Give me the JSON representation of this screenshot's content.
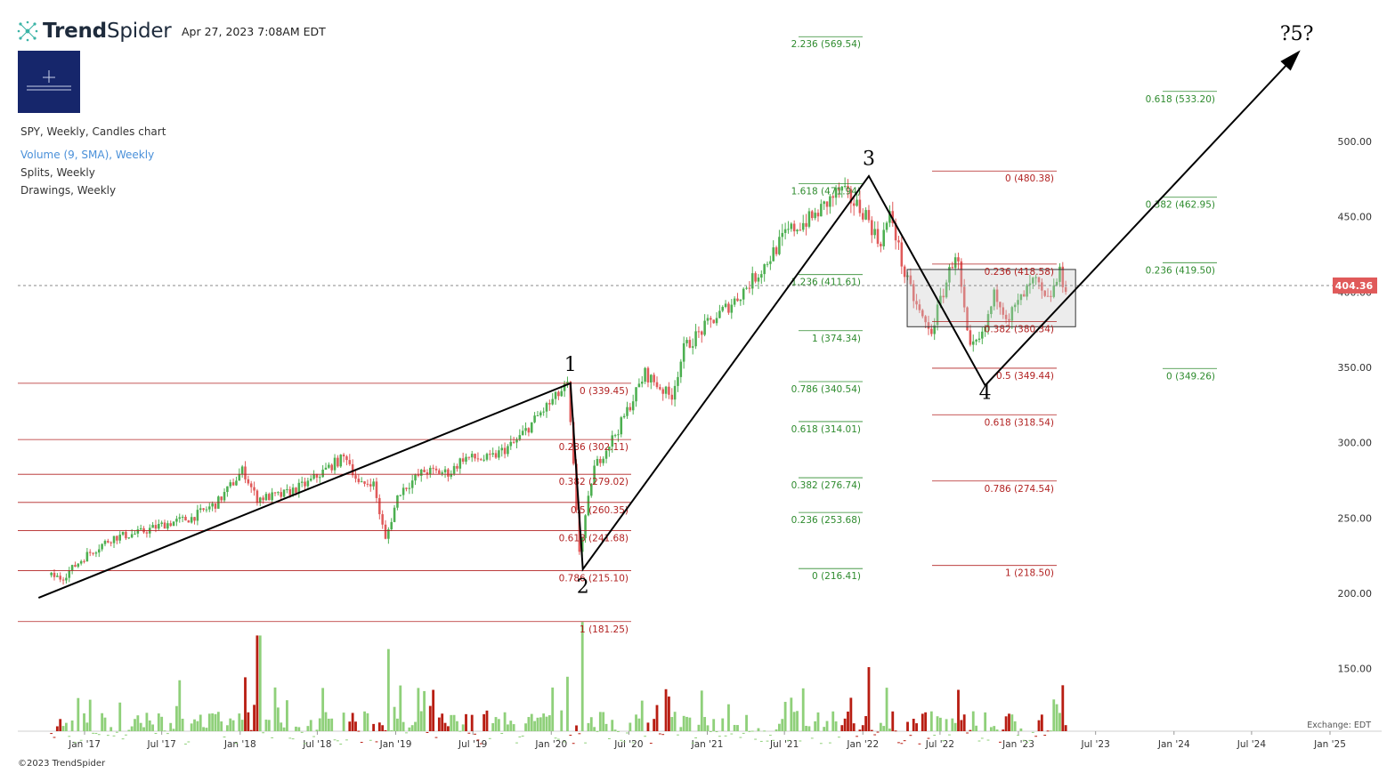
{
  "header": {
    "brand_trend": "Trend",
    "brand_spider": "Spider",
    "datestamp": "Apr 27, 2023 7:08AM EDT"
  },
  "legend": {
    "main": "SPY, Weekly, Candles chart",
    "volume": "Volume (9, SMA), Weekly",
    "splits": "Splits, Weekly",
    "drawings": "Drawings, Weekly"
  },
  "footer": {
    "copyright": "©2023 TrendSpider",
    "exchange": "Exchange: EDT"
  },
  "colors": {
    "up": "#4caf50",
    "down": "#e05a5a",
    "vol_up": "#8fd07a",
    "vol_down": "#b81d12",
    "fib_red": "#b22222",
    "fib_green": "#2e8b2e",
    "price_badge": "#e05a5a",
    "brand": "#16266b"
  },
  "chart_data": {
    "type": "candlestick",
    "title": "SPY, Weekly, Candles chart",
    "y_ticks": [
      150,
      200,
      250,
      300,
      350,
      400,
      450,
      500
    ],
    "ylim": [
      95,
      580
    ],
    "x_ticks": [
      "Jan '17",
      "Jul '17",
      "Jan '18",
      "Jul '18",
      "Jan '19",
      "Jul '19",
      "Jan '20",
      "Jul '20",
      "Jan '21",
      "Jul '21",
      "Jan '22",
      "Jul '22",
      "Jan '23",
      "Jul '23",
      "Jan '24",
      "Jul '24",
      "Jan '25"
    ],
    "last_price": "404.36",
    "price_path": [
      [
        "2016-10",
        212
      ],
      [
        "2016-11",
        210
      ],
      [
        "2017-01",
        226
      ],
      [
        "2017-03",
        237
      ],
      [
        "2017-05",
        240
      ],
      [
        "2017-07",
        246
      ],
      [
        "2017-09",
        250
      ],
      [
        "2017-11",
        260
      ],
      [
        "2018-01",
        282
      ],
      [
        "2018-02",
        263
      ],
      [
        "2018-04",
        265
      ],
      [
        "2018-06",
        273
      ],
      [
        "2018-08",
        286
      ],
      [
        "2018-09",
        291
      ],
      [
        "2018-10",
        271
      ],
      [
        "2018-11",
        275
      ],
      [
        "2018-12",
        235
      ],
      [
        "2019-01",
        267
      ],
      [
        "2019-03",
        281
      ],
      [
        "2019-05",
        280
      ],
      [
        "2019-06",
        290
      ],
      [
        "2019-08",
        289
      ],
      [
        "2019-10",
        300
      ],
      [
        "2019-12",
        320
      ],
      [
        "2020-02",
        338
      ],
      [
        "2020-03",
        225
      ],
      [
        "2020-04",
        282
      ],
      [
        "2020-06",
        310
      ],
      [
        "2020-08",
        346
      ],
      [
        "2020-10",
        330
      ],
      [
        "2020-11",
        363
      ],
      [
        "2021-01",
        380
      ],
      [
        "2021-03",
        395
      ],
      [
        "2021-05",
        415
      ],
      [
        "2021-07",
        440
      ],
      [
        "2021-09",
        450
      ],
      [
        "2021-11",
        468
      ],
      [
        "2022-01",
        452
      ],
      [
        "2022-02",
        432
      ],
      [
        "2022-03",
        452
      ],
      [
        "2022-04",
        412
      ],
      [
        "2022-05",
        390
      ],
      [
        "2022-06",
        372
      ],
      [
        "2022-08",
        428
      ],
      [
        "2022-09",
        360
      ],
      [
        "2022-10",
        370
      ],
      [
        "2022-11",
        400
      ],
      [
        "2022-12",
        383
      ],
      [
        "2023-02",
        408
      ],
      [
        "2023-03",
        392
      ],
      [
        "2023-04",
        412
      ],
      [
        "2023-04-27",
        404
      ]
    ],
    "volume_spikes": [
      [
        "2018-02",
        172
      ],
      [
        "2018-12",
        163
      ],
      [
        "2020-03",
        181
      ],
      [
        "2022-01",
        151
      ]
    ],
    "wave_labels": [
      {
        "label": "1",
        "date": "2020-02",
        "price": 339.45
      },
      {
        "label": "2",
        "date": "2020-03",
        "price": 218
      },
      {
        "label": "3",
        "date": "2022-01",
        "price": 476
      },
      {
        "label": "4",
        "date": "2022-10",
        "price": 348
      },
      {
        "label": "?5?",
        "date": "2024-10",
        "price": 572
      }
    ],
    "fib_sets": [
      {
        "color": "red",
        "levels": [
          {
            "label": "0 (339.45)",
            "price": 339.45
          },
          {
            "label": "0.236 (302.11)",
            "price": 302.11
          },
          {
            "label": "0.382 (279.02)",
            "price": 279.02
          },
          {
            "label": "0.5 (260.35)",
            "price": 260.35
          },
          {
            "label": "0.618 (241.68)",
            "price": 241.68
          },
          {
            "label": "0.786 (215.10)",
            "price": 215.1
          },
          {
            "label": "1 (181.25)",
            "price": 181.25
          }
        ]
      },
      {
        "color": "green",
        "levels": [
          {
            "label": "2.236 (569.54)",
            "price": 569.54
          },
          {
            "label": "1.618 (471.94)",
            "price": 471.94
          },
          {
            "label": "1.236 (411.61)",
            "price": 411.61
          },
          {
            "label": "1 (374.34)",
            "price": 374.34
          },
          {
            "label": "0.786 (340.54)",
            "price": 340.54
          },
          {
            "label": "0.618 (314.01)",
            "price": 314.01
          },
          {
            "label": "0.382 (276.74)",
            "price": 276.74
          },
          {
            "label": "0.236 (253.68)",
            "price": 253.68
          },
          {
            "label": "0 (216.41)",
            "price": 216.41
          }
        ]
      },
      {
        "color": "red",
        "levels": [
          {
            "label": "0 (480.38)",
            "price": 480.38
          },
          {
            "label": "0.236 (418.58)",
            "price": 418.58
          },
          {
            "label": "0.382 (380.34)",
            "price": 380.34
          },
          {
            "label": "0.5 (349.44)",
            "price": 349.44
          },
          {
            "label": "0.618 (318.54)",
            "price": 318.54
          },
          {
            "label": "0.786 (274.54)",
            "price": 274.54
          },
          {
            "label": "1 (218.50)",
            "price": 218.5
          }
        ]
      },
      {
        "color": "green",
        "levels": [
          {
            "label": "0.618 (533.20)",
            "price": 533.2
          },
          {
            "label": "0.382 (462.95)",
            "price": 462.95
          },
          {
            "label": "0.236 (419.50)",
            "price": 419.5
          },
          {
            "label": "0 (349.26)",
            "price": 349.26
          }
        ]
      }
    ],
    "wave_path": [
      [
        "2016-09",
        197
      ],
      [
        "2020-02",
        339.45
      ],
      [
        "2020-03",
        216
      ],
      [
        "2022-01",
        477
      ],
      [
        "2022-10",
        338
      ],
      [
        "2024-10",
        558
      ]
    ],
    "box": {
      "from": "2022-04",
      "to": "2023-05",
      "top": 415,
      "bottom": 377
    }
  }
}
